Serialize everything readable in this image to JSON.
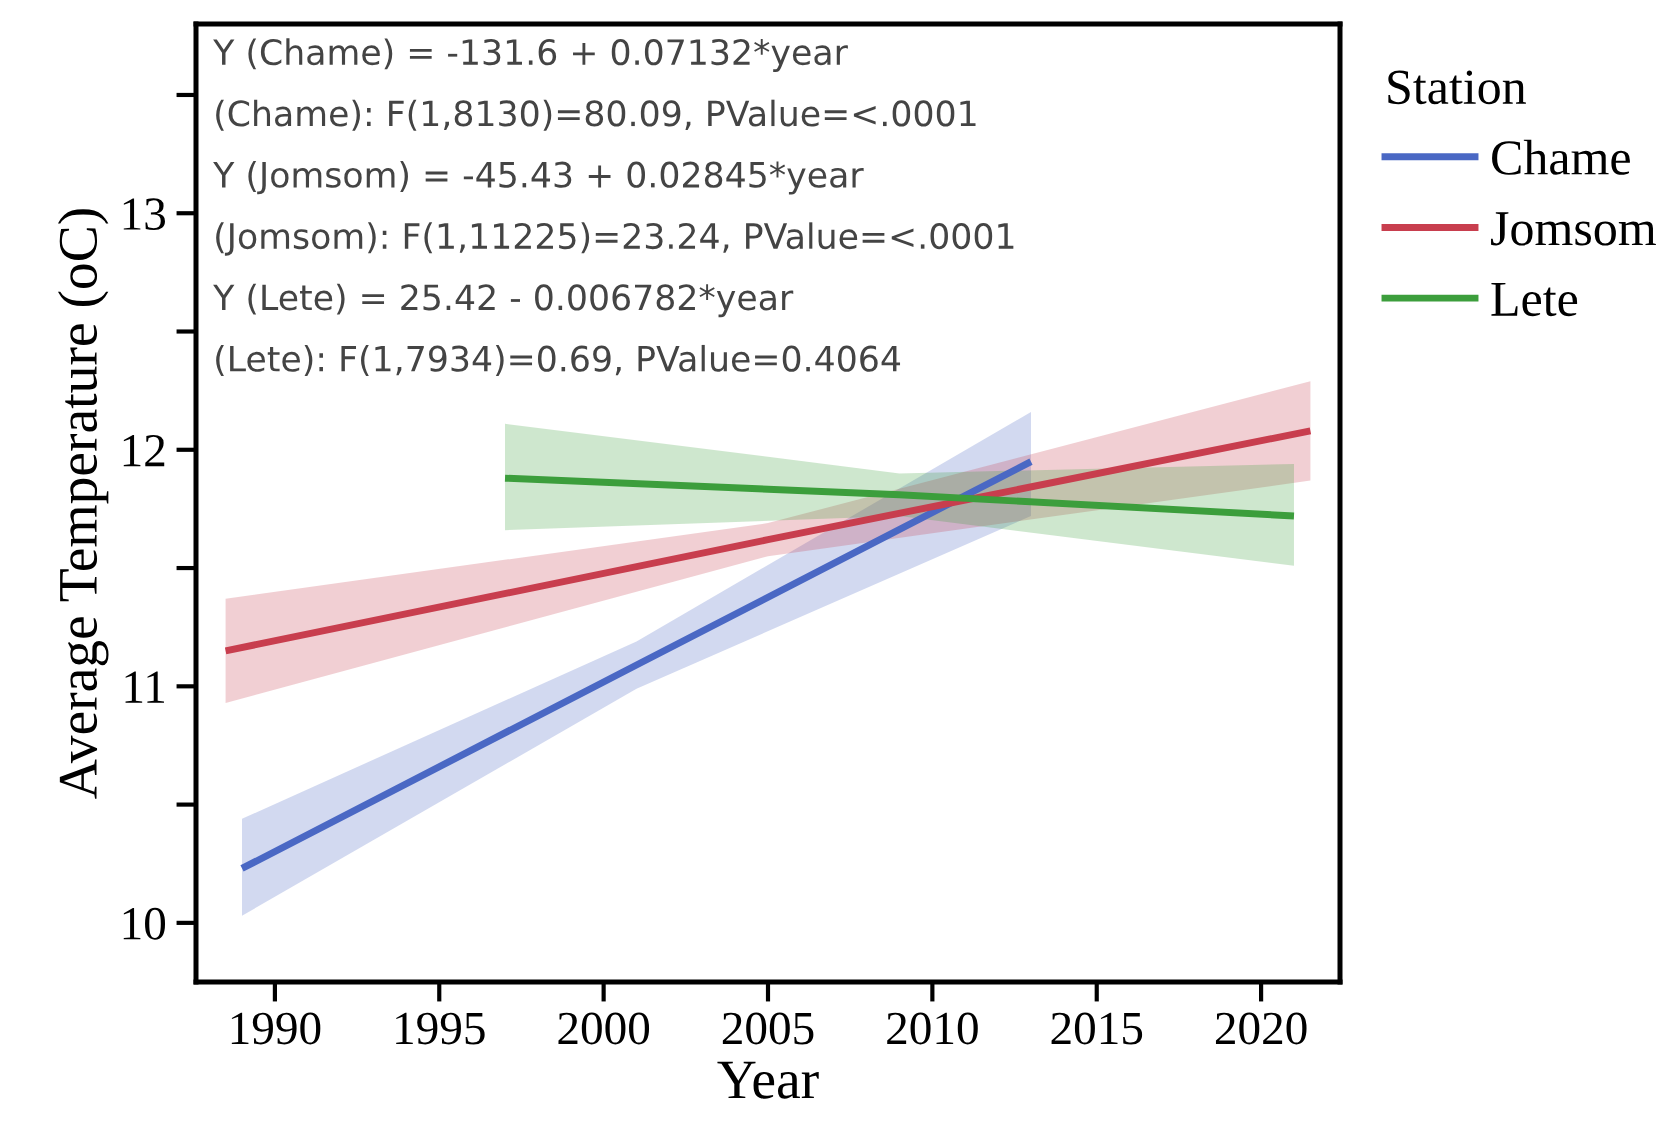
{
  "chart_data": {
    "type": "line",
    "xlabel": "Year",
    "ylabel": "Average Temperature (oC)",
    "legend_title": "Station",
    "legend": "right",
    "xlim": [
      1987.6,
      2022.4
    ],
    "xticks": [
      1990,
      1995,
      2000,
      2005,
      2010,
      2015,
      2020
    ],
    "ylim": [
      9.75,
      13.8
    ],
    "yticks": [
      10,
      {
        "value": 10.5,
        "label": null
      },
      11,
      {
        "value": 11.5,
        "label": null
      },
      12,
      {
        "value": 12.5,
        "label": null
      },
      13,
      {
        "value": 13.5,
        "label": null
      }
    ],
    "grid": false,
    "series": [
      {
        "name": "Chame",
        "color": "#4a68c4",
        "x": [
          1989,
          2001,
          2013
        ],
        "values": [
          10.23,
          11.09,
          11.95
        ],
        "lower": [
          10.03,
          10.99,
          11.72
        ],
        "upper": [
          10.44,
          11.19,
          12.16
        ]
      },
      {
        "name": "Jomsom",
        "color": "#c83e4e",
        "x": [
          1988.5,
          2005,
          2021.5
        ],
        "values": [
          11.15,
          11.62,
          12.08
        ],
        "lower": [
          10.93,
          11.55,
          11.87
        ],
        "upper": [
          11.37,
          11.69,
          12.29
        ]
      },
      {
        "name": "Lete",
        "color": "#3c9e3c",
        "x": [
          1997,
          2009,
          2021
        ],
        "values": [
          11.88,
          11.81,
          11.72
        ],
        "lower": [
          11.66,
          11.72,
          11.51
        ],
        "upper": [
          12.11,
          11.9,
          11.94
        ]
      }
    ],
    "annotations": [
      "Y (Chame) = -131.6 + 0.07132*year",
      "(Chame): F(1,8130)=80.09, PValue=<.0001",
      "Y (Jomsom) = -45.43 + 0.02845*year",
      "(Jomsom): F(1,11225)=23.24, PValue=<.0001",
      "Y (Lete) = 25.42 - 0.006782*year",
      "(Lete): F(1,7934)=0.69, PValue=0.4064"
    ]
  }
}
